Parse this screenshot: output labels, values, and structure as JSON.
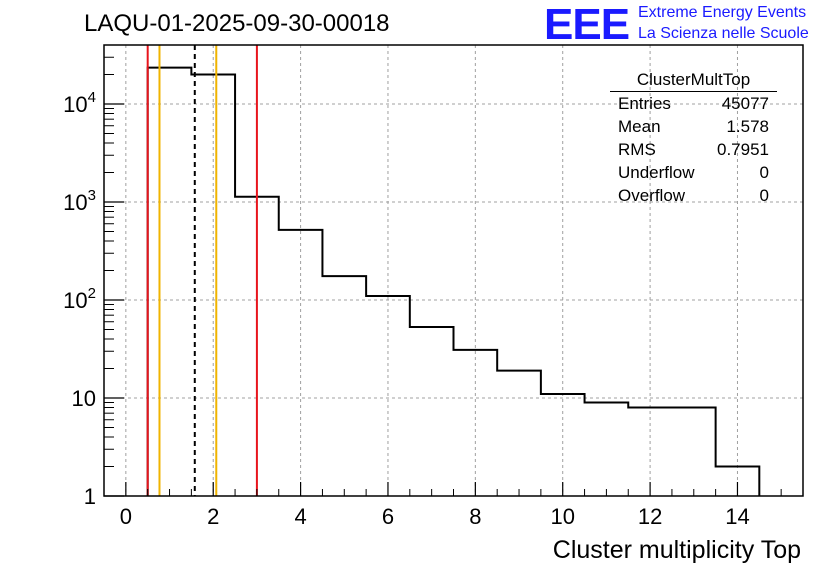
{
  "title": "LAQU-01-2025-09-30-00018",
  "logo": {
    "text": "EEE",
    "line1": "Extreme Energy Events",
    "line2": "La Scienza nelle Scuole"
  },
  "stats": {
    "name": "ClusterMultTop",
    "rows": [
      {
        "label": "Entries",
        "value": "45077"
      },
      {
        "label": "Mean",
        "value": "1.578"
      },
      {
        "label": "RMS",
        "value": "0.7951"
      },
      {
        "label": "Underflow",
        "value": "0"
      },
      {
        "label": "Overflow",
        "value": "0"
      }
    ]
  },
  "chart_data": {
    "type": "histogram",
    "title": "LAQU-01-2025-09-30-00018",
    "xlabel": "Cluster multiplicity Top",
    "ylabel": "",
    "yscale": "log",
    "xlim": [
      -0.5,
      15.5
    ],
    "ylim": [
      1,
      40000
    ],
    "grid": true,
    "x_ticks": [
      0,
      2,
      4,
      6,
      8,
      10,
      12,
      14
    ],
    "x_tick_labels": [
      "0",
      "2",
      "4",
      "6",
      "8",
      "10",
      "12",
      "14"
    ],
    "y_ticks": [
      1,
      10,
      100,
      1000,
      10000
    ],
    "y_tick_labels": [
      "1",
      "10",
      "10^2",
      "10^3",
      "10^4"
    ],
    "bin_edges": [
      0.5,
      1.5,
      2.5,
      3.5,
      4.5,
      5.5,
      6.5,
      7.5,
      8.5,
      9.5,
      10.5,
      11.5,
      12.5,
      13.5,
      14.5
    ],
    "counts": [
      23500,
      20000,
      1130,
      520,
      175,
      110,
      53,
      31,
      19,
      11,
      9,
      8,
      8,
      2
    ],
    "vertical_lines": [
      {
        "x": 0.5,
        "color": "#e8141c",
        "style": "solid"
      },
      {
        "x": 0.77,
        "color": "#f0b400",
        "style": "solid"
      },
      {
        "x": 1.578,
        "color": "#000000",
        "style": "dashed"
      },
      {
        "x": 2.07,
        "color": "#f0b400",
        "style": "solid"
      },
      {
        "x": 3.0,
        "color": "#e8141c",
        "style": "solid"
      }
    ]
  }
}
